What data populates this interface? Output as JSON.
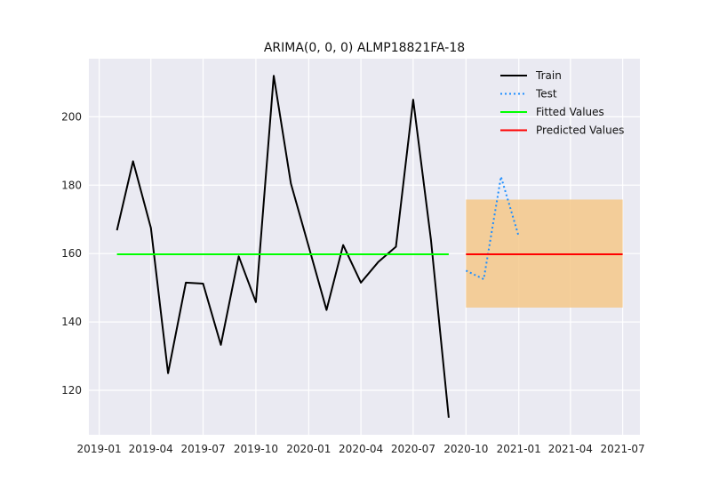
{
  "chart_data": {
    "type": "line",
    "title": "ARIMA(0, 0, 0) ALMP18821FA-18",
    "xlabel": "",
    "ylabel": "",
    "x_axis_type": "date",
    "xlim": [
      "2018-12-14",
      "2021-07-31"
    ],
    "ylim": [
      107,
      217
    ],
    "x_ticks": [
      "2019-01",
      "2019-04",
      "2019-07",
      "2019-10",
      "2020-01",
      "2020-04",
      "2020-07",
      "2020-10",
      "2021-01",
      "2021-04",
      "2021-07"
    ],
    "y_ticks": [
      120,
      140,
      160,
      180,
      200
    ],
    "grid": true,
    "legend_position": "top-right",
    "series": [
      {
        "name": "Train",
        "color": "#000000",
        "style": "solid",
        "x": [
          "2019-02-01",
          "2019-03-01",
          "2019-04-01",
          "2019-05-01",
          "2019-06-01",
          "2019-07-01",
          "2019-08-01",
          "2019-09-01",
          "2019-10-01",
          "2019-11-01",
          "2019-12-01",
          "2020-01-01",
          "2020-02-01",
          "2020-03-01",
          "2020-04-01",
          "2020-05-01",
          "2020-06-01",
          "2020-07-01",
          "2020-08-01",
          "2020-09-01"
        ],
        "y": [
          166.8,
          187.0,
          167.5,
          125.0,
          151.5,
          151.2,
          133.3,
          159.2,
          145.8,
          212.0,
          180.5,
          162.0,
          143.5,
          162.5,
          151.5,
          157.5,
          162.0,
          205.0,
          164.0,
          112.0
        ]
      },
      {
        "name": "Test",
        "color": "#1f8fff",
        "style": "dotted",
        "x": [
          "2020-10-01",
          "2020-11-01",
          "2020-12-01",
          "2021-01-01"
        ],
        "y": [
          155.0,
          152.5,
          182.5,
          165.0
        ]
      },
      {
        "name": "Fitted Values",
        "color": "#00ff00",
        "style": "solid",
        "x": [
          "2019-02-01",
          "2020-09-01"
        ],
        "y": [
          159.8,
          159.8
        ]
      },
      {
        "name": "Predicted Values",
        "color": "#ff0000",
        "style": "solid",
        "x": [
          "2020-10-01",
          "2021-07-01"
        ],
        "y": [
          159.8,
          159.8
        ]
      }
    ],
    "confidence_band": {
      "color": "#f5c88a",
      "x": [
        "2020-10-01",
        "2021-07-01"
      ],
      "lower": 144.2,
      "upper": 175.8
    }
  }
}
